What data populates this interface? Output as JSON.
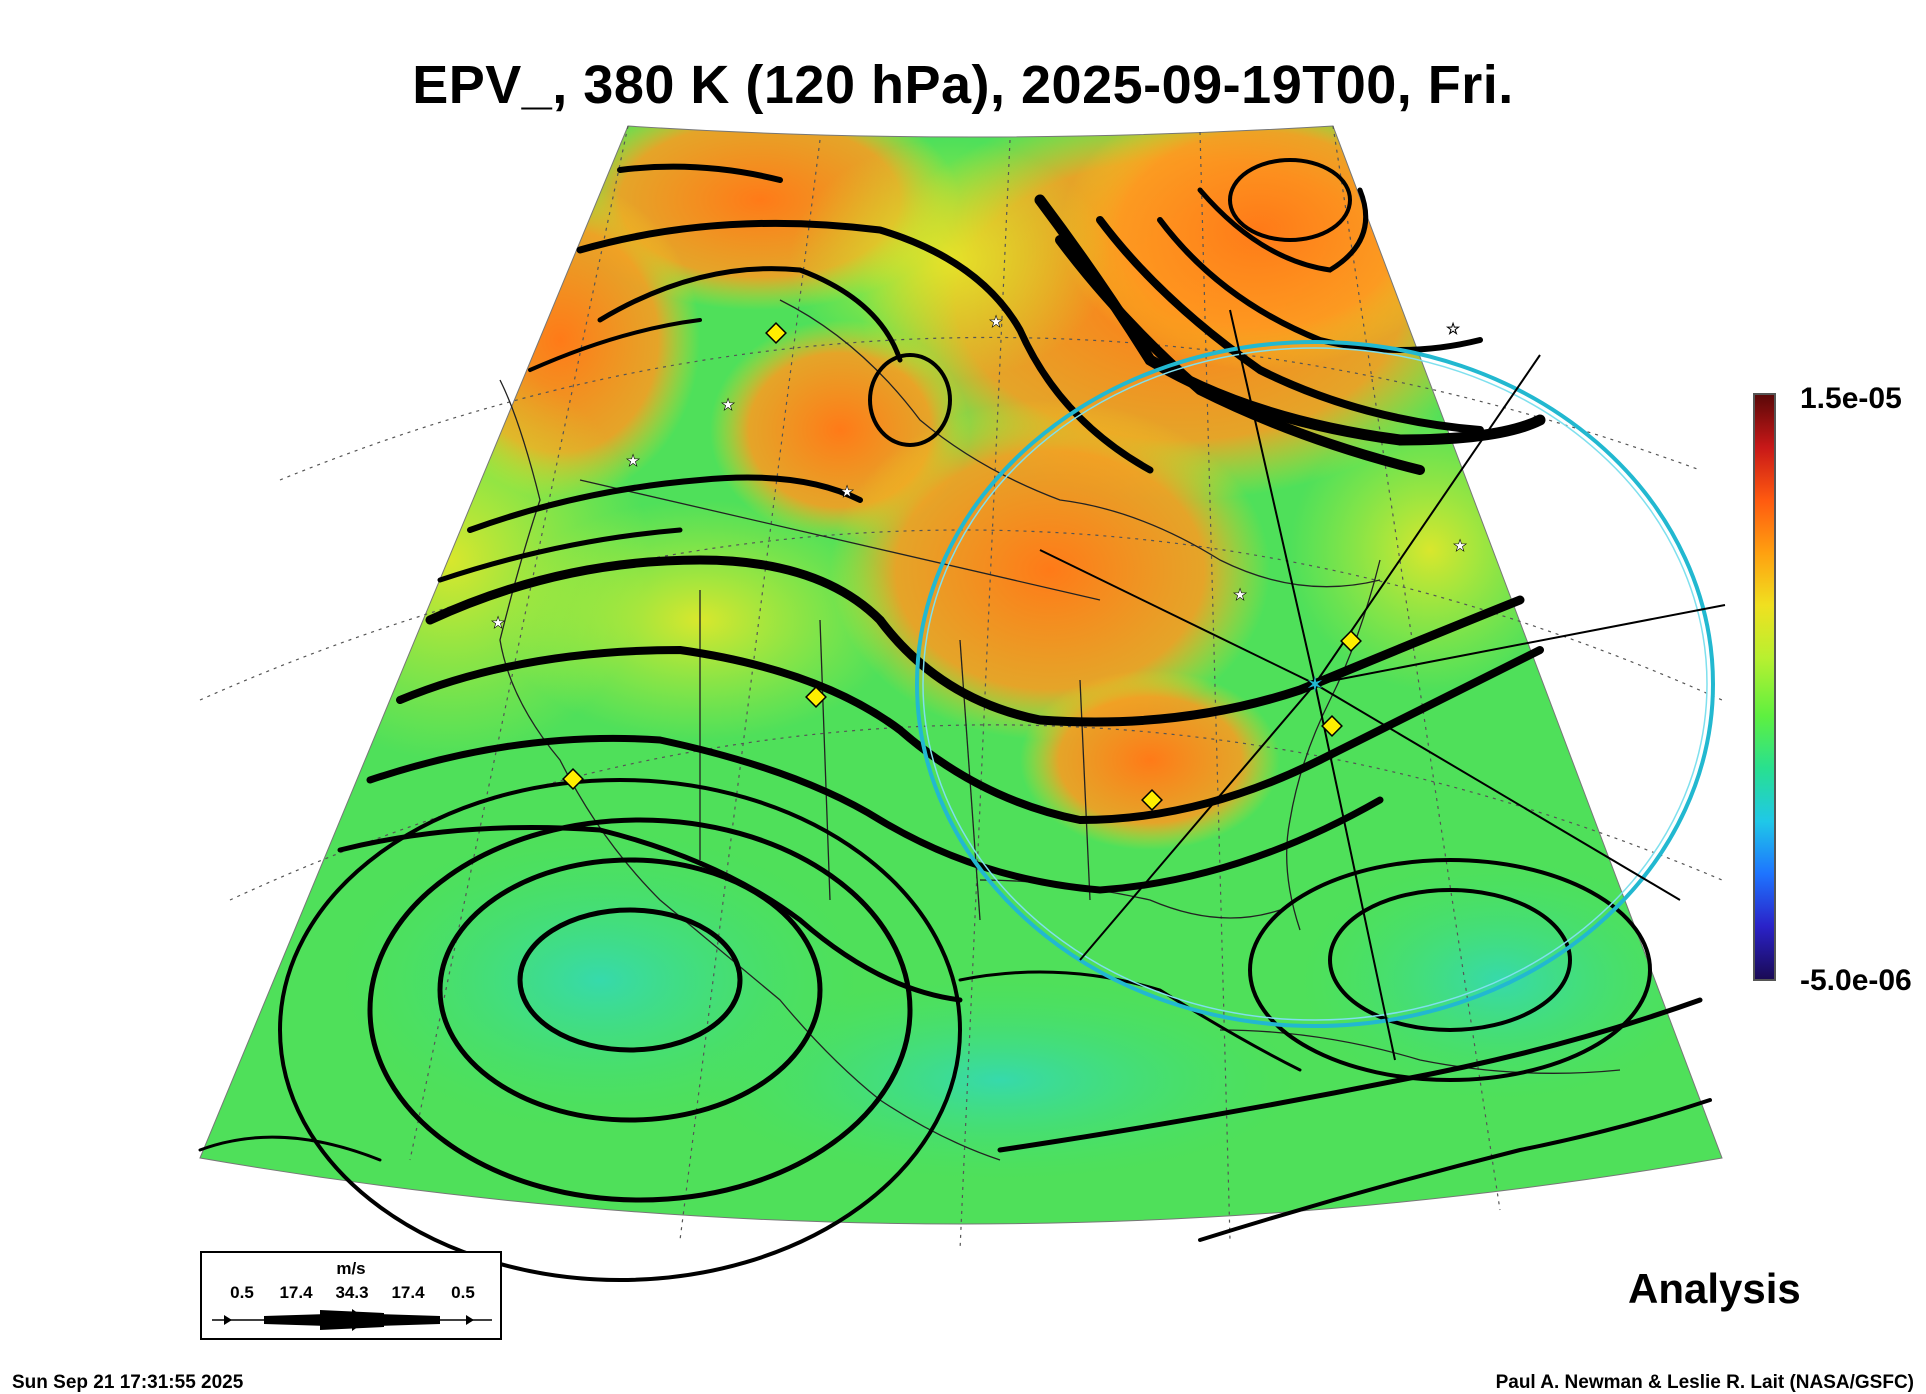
{
  "title": "EPV_, 380 K (120 hPa), 2025-09-19T00, Fri.",
  "colorbar": {
    "max_label": "1.5e-05",
    "min_label": "-5.0e-06",
    "colors": [
      "#1a0a55",
      "#2a22c8",
      "#1e74ff",
      "#1fc8e8",
      "#28e090",
      "#5ef040",
      "#b8f030",
      "#f0e020",
      "#ffa010",
      "#ff5a10",
      "#c81818",
      "#5a0808"
    ]
  },
  "wind_legend": {
    "unit": "m/s",
    "values": [
      "0.5",
      "17.4",
      "34.3",
      "17.4",
      "0.5"
    ]
  },
  "analysis_label": "Analysis",
  "timestamp": "Sun Sep 21 17:31:55 2025",
  "credit": "Paul A. Newman & Leslie R. Lait (NASA/GSFC)",
  "colors": {
    "field_base": "#4fe05a",
    "field_high": "#ff8a1e",
    "field_mid": "#c8ec30",
    "circle": "#22b8d0",
    "marker": "#ffee00"
  }
}
